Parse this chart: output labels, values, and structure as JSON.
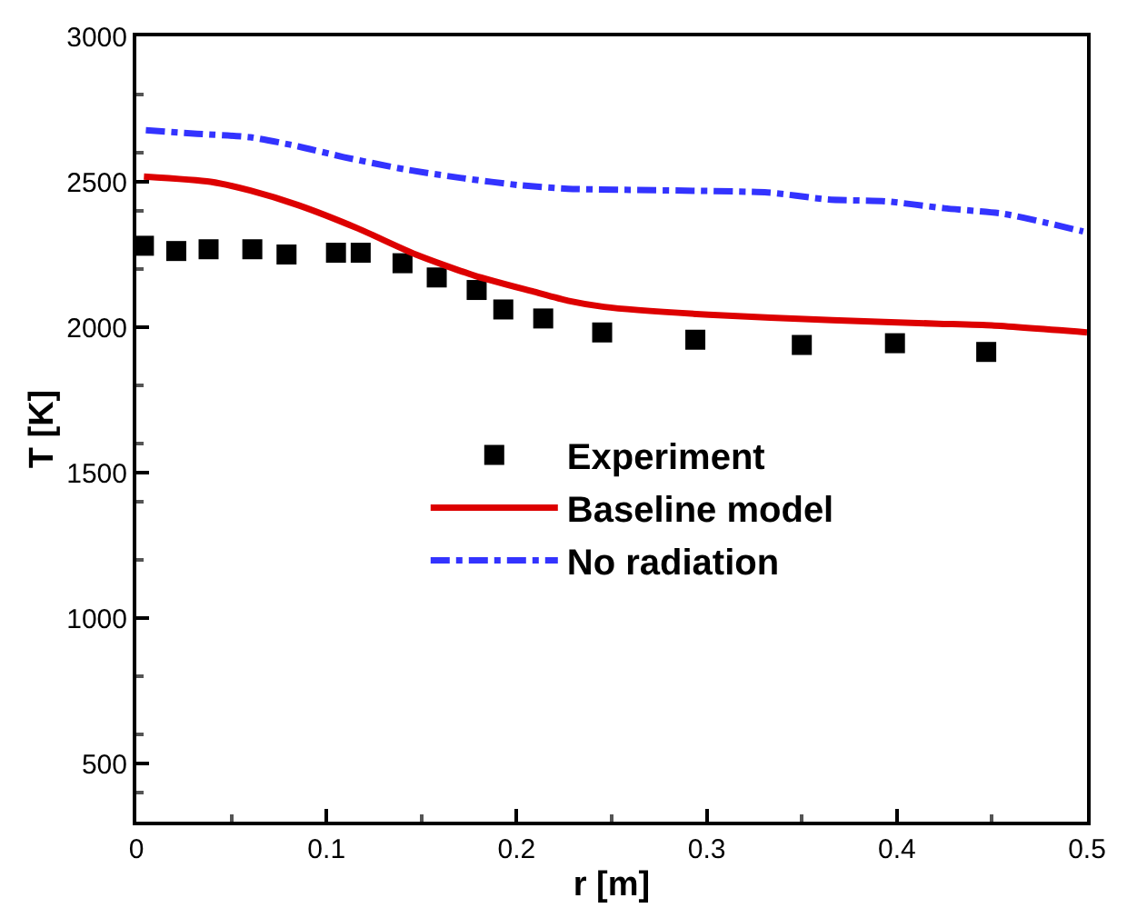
{
  "chart_data": {
    "type": "line",
    "xlabel": "r [m]",
    "ylabel": "T [K]",
    "xlim": [
      0,
      0.5
    ],
    "xticks": [
      0,
      0.1,
      0.2,
      0.3,
      0.4,
      0.5
    ],
    "ylim": [
      300,
      3000
    ],
    "yticks": [
      500,
      1000,
      1500,
      2000,
      2500,
      3000
    ],
    "legend": "center",
    "series": [
      {
        "name": "Experiment",
        "type": "scatter",
        "marker": "square",
        "color": "#000000",
        "x": [
          0.004,
          0.021,
          0.038,
          0.061,
          0.079,
          0.105,
          0.118,
          0.14,
          0.158,
          0.179,
          0.193,
          0.214,
          0.245,
          0.294,
          0.35,
          0.399,
          0.447
        ],
        "values": [
          2280,
          2262,
          2268,
          2268,
          2250,
          2256,
          2256,
          2220,
          2171,
          2128,
          2061,
          2030,
          1982,
          1957,
          1939,
          1945,
          1915
        ]
      },
      {
        "name": "Baseline model",
        "line_style": "solid",
        "color": "#dd0000",
        "x": [
          0.004,
          0.039,
          0.06,
          0.085,
          0.116,
          0.147,
          0.178,
          0.209,
          0.227,
          0.246,
          0.301,
          0.366,
          0.422,
          0.45,
          0.5
        ],
        "values": [
          2518,
          2500,
          2470,
          2420,
          2341,
          2250,
          2177,
          2122,
          2091,
          2070,
          2043,
          2024,
          2012,
          2006,
          1982
        ]
      },
      {
        "name": "No radiation",
        "line_style": "dashdot",
        "color": "#3333ff",
        "x": [
          0.005,
          0.032,
          0.06,
          0.085,
          0.109,
          0.141,
          0.172,
          0.202,
          0.227,
          0.332,
          0.364,
          0.394,
          0.425,
          0.456,
          0.478,
          0.498
        ],
        "values": [
          2677,
          2665,
          2653,
          2622,
          2585,
          2543,
          2512,
          2488,
          2476,
          2463,
          2439,
          2433,
          2409,
          2390,
          2360,
          2329
        ]
      }
    ]
  }
}
